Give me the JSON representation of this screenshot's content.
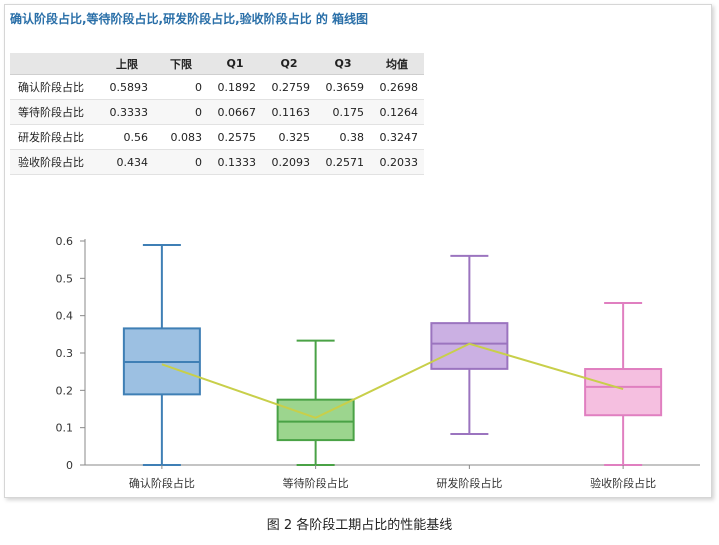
{
  "title": "确认阶段占比,等待阶段占比,研发阶段占比,验收阶段占比 的 箱线图",
  "table": {
    "headers": [
      "",
      "上限",
      "下限",
      "Q1",
      "Q2",
      "Q3",
      "均值"
    ],
    "rows": [
      [
        "确认阶段占比",
        "0.5893",
        "0",
        "0.1892",
        "0.2759",
        "0.3659",
        "0.2698"
      ],
      [
        "等待阶段占比",
        "0.3333",
        "0",
        "0.0667",
        "0.1163",
        "0.175",
        "0.1264"
      ],
      [
        "研发阶段占比",
        "0.56",
        "0.083",
        "0.2575",
        "0.325",
        "0.38",
        "0.3247"
      ],
      [
        "验收阶段占比",
        "0.434",
        "0",
        "0.1333",
        "0.2093",
        "0.2571",
        "0.2033"
      ]
    ]
  },
  "chart_data": {
    "type": "box",
    "categories": [
      "确认阶段占比",
      "等待阶段占比",
      "研发阶段占比",
      "验收阶段占比"
    ],
    "boxes": [
      {
        "whisker_high": 0.5893,
        "whisker_low": 0,
        "q1": 0.1892,
        "median": 0.2759,
        "q3": 0.3659,
        "mean": 0.2698
      },
      {
        "whisker_high": 0.3333,
        "whisker_low": 0,
        "q1": 0.0667,
        "median": 0.1163,
        "q3": 0.175,
        "mean": 0.1264
      },
      {
        "whisker_high": 0.56,
        "whisker_low": 0.083,
        "q1": 0.2575,
        "median": 0.325,
        "q3": 0.38,
        "mean": 0.3247
      },
      {
        "whisker_high": 0.434,
        "whisker_low": 0,
        "q1": 0.1333,
        "median": 0.2093,
        "q3": 0.2571,
        "mean": 0.2033
      }
    ],
    "colors": [
      {
        "stroke": "#3f7fb5",
        "fill": "#9cc0e2"
      },
      {
        "stroke": "#4aa246",
        "fill": "#9cd58e"
      },
      {
        "stroke": "#9b74bf",
        "fill": "#cbb0e3"
      },
      {
        "stroke": "#e07fc0",
        "fill": "#f5bfe0"
      }
    ],
    "mean_line_color": "#c8cf4a",
    "ylim": [
      0,
      0.6
    ],
    "yticks": [
      "0",
      "0.1",
      "0.2",
      "0.3",
      "0.4",
      "0.5",
      "0.6"
    ],
    "grid": false,
    "legend": "none"
  },
  "caption": "图 2 各阶段工期占比的性能基线"
}
